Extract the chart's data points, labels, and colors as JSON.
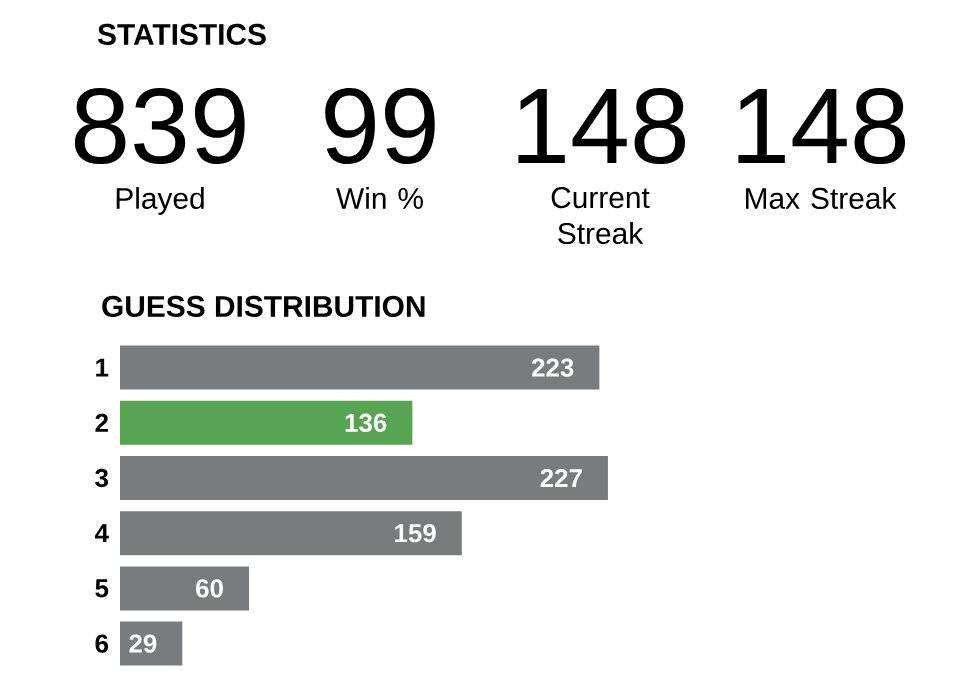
{
  "chart_data": [
    {
      "type": "other",
      "title": "STATISTICS",
      "annotations": [
        "839",
        "99",
        "148",
        "148",
        "Played",
        "Win %",
        "Current Streak",
        "Max Streak"
      ]
    },
    {
      "type": "bar",
      "orientation": "horizontal",
      "title": "GUESS DISTRIBUTION",
      "categories": [
        "1",
        "2",
        "3",
        "4",
        "5",
        "6"
      ],
      "values": [
        223,
        136,
        227,
        159,
        60,
        29
      ],
      "colors": [
        "#787c7e",
        "#57a553",
        "#787c7e",
        "#787c7e",
        "#787c7e",
        "#787c7e"
      ],
      "data_labels": true
    }
  ]
}
